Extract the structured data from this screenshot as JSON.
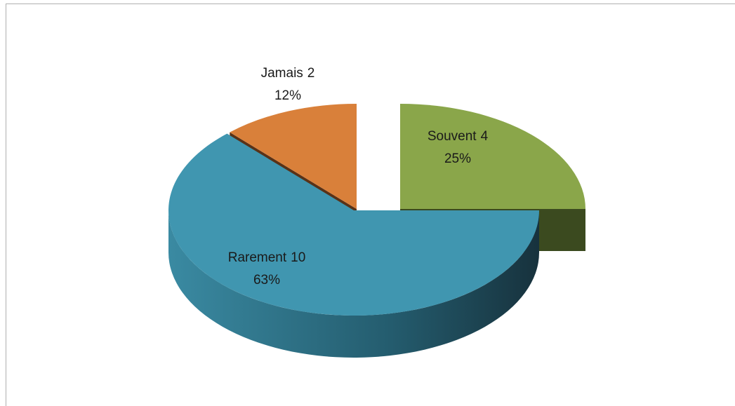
{
  "chart_data": {
    "type": "pie3d",
    "categories": [
      "Souvent",
      "Rarement",
      "Jamais"
    ],
    "counts": [
      4,
      10,
      2
    ],
    "values": [
      25,
      63,
      12
    ],
    "value_labels": [
      "25%",
      "63%",
      "12%"
    ],
    "colors": [
      "#8aa64a",
      "#4096b0",
      "#d9803a"
    ],
    "side_colors": [
      "#3b4a1f",
      "#1f4a58",
      "#5a3216"
    ]
  }
}
